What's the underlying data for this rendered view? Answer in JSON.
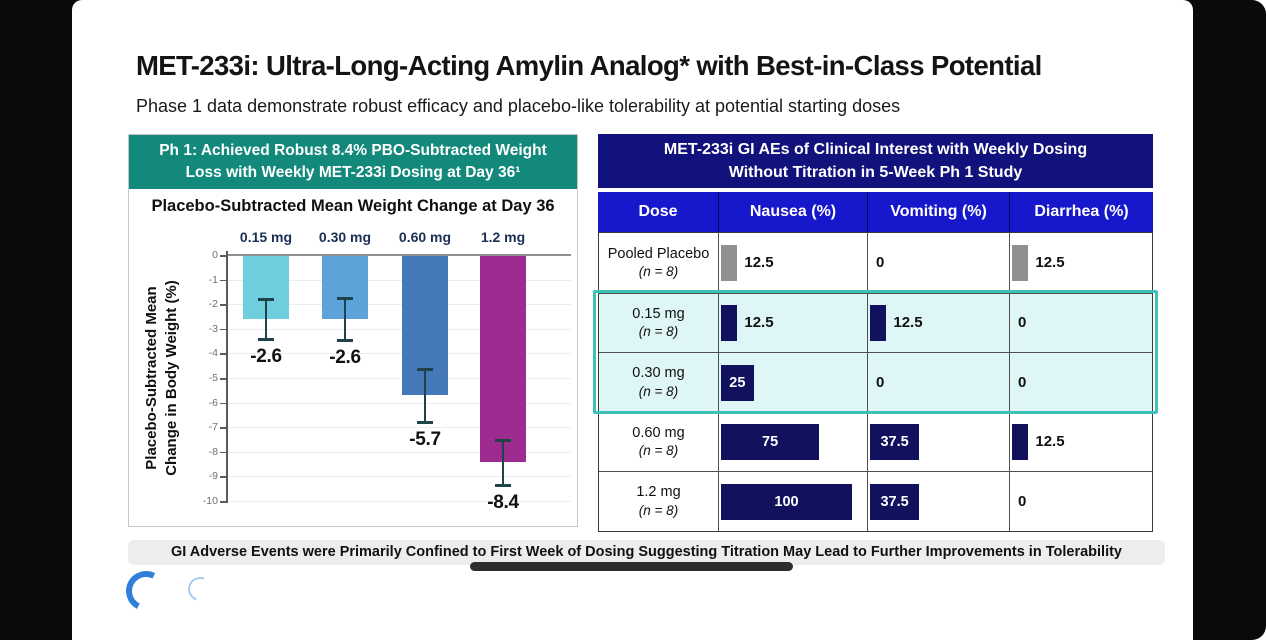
{
  "slide": {
    "title": "MET-233i: Ultra-Long-Acting Amylin Analog* with Best-in-Class Potential",
    "subtitle": "Phase 1 data demonstrate robust efficacy and placebo-like tolerability at potential starting doses"
  },
  "left_panel": {
    "header_line1": "Ph 1: Achieved Robust 8.4% PBO-Subtracted Weight",
    "header_line2": "Loss with Weekly MET-233i Dosing at Day 36¹",
    "chart_title": "Placebo-Subtracted Mean Weight Change at Day 36"
  },
  "right_panel": {
    "header_line1": "MET-233i GI AEs of Clinical Interest with Weekly Dosing",
    "header_line2": "Without Titration in 5-Week Ph 1 Study"
  },
  "chart_data": [
    {
      "type": "bar",
      "title": "Placebo-Subtracted Mean Weight Change at Day 36",
      "categories": [
        "0.15 mg",
        "0.30 mg",
        "0.60 mg",
        "1.2 mg"
      ],
      "values": [
        -2.6,
        -2.6,
        -5.7,
        -8.4
      ],
      "labels": [
        "-2.6",
        "-2.6",
        "-5.7",
        "-8.4"
      ],
      "error_top": [
        -1.8,
        -1.75,
        -4.65,
        -7.5
      ],
      "error_bottom": [
        -3.4,
        -3.45,
        -6.8,
        -9.35
      ],
      "bar_colors": [
        "#6fcede",
        "#5ba3d9",
        "#4478b8",
        "#9e2b90"
      ],
      "ylabel_line1": "Placebo-Subtracted Mean",
      "ylabel_line2": "Change in Body Weight (%)",
      "ylim": [
        -10,
        0
      ],
      "yticks": [
        0,
        -1,
        -2,
        -3,
        -4,
        -5,
        -6,
        -7,
        -8,
        -9,
        -10
      ],
      "grid": true,
      "legend": "none"
    },
    {
      "type": "table",
      "columns": [
        "Dose",
        "Nausea (%)",
        "Vomiting (%)",
        "Diarrhea (%)"
      ],
      "rows": [
        {
          "dose": "Pooled Placebo",
          "n": "(n = 8)",
          "values": [
            "12.5",
            "0",
            "12.5"
          ],
          "bar_color": "#8f8f8f",
          "highlight": false
        },
        {
          "dose": "0.15 mg",
          "n": "(n = 8)",
          "values": [
            "12.5",
            "12.5",
            "0"
          ],
          "bar_color": "#11115e",
          "highlight": true
        },
        {
          "dose": "0.30 mg",
          "n": "(n = 8)",
          "values": [
            "25",
            "0",
            "0"
          ],
          "bar_color": "#11115e",
          "highlight": true
        },
        {
          "dose": "0.60 mg",
          "n": "(n = 8)",
          "values": [
            "75",
            "37.5",
            "12.5"
          ],
          "bar_color": "#11115e",
          "highlight": false
        },
        {
          "dose": "1.2 mg",
          "n": "(n = 8)",
          "values": [
            "100",
            "37.5",
            "0"
          ],
          "bar_color": "#11115e",
          "highlight": false
        }
      ]
    }
  ],
  "footer": {
    "text": "GI Adverse Events were Primarily Confined to First Week of Dosing Suggesting Titration May Lead to Further Improvements in Tolerability"
  },
  "colors": {
    "teal_header": "#13897b",
    "navy_header": "#12127d",
    "column_header_blue": "#1717cb",
    "highlight_border": "#3fc2b6",
    "highlight_bg": "#def6f5",
    "table_bar_navy": "#11115e",
    "placebo_bar_gray": "#8f8f8f",
    "error_bar": "#20434a",
    "frame_black": "#0a0a0a"
  }
}
